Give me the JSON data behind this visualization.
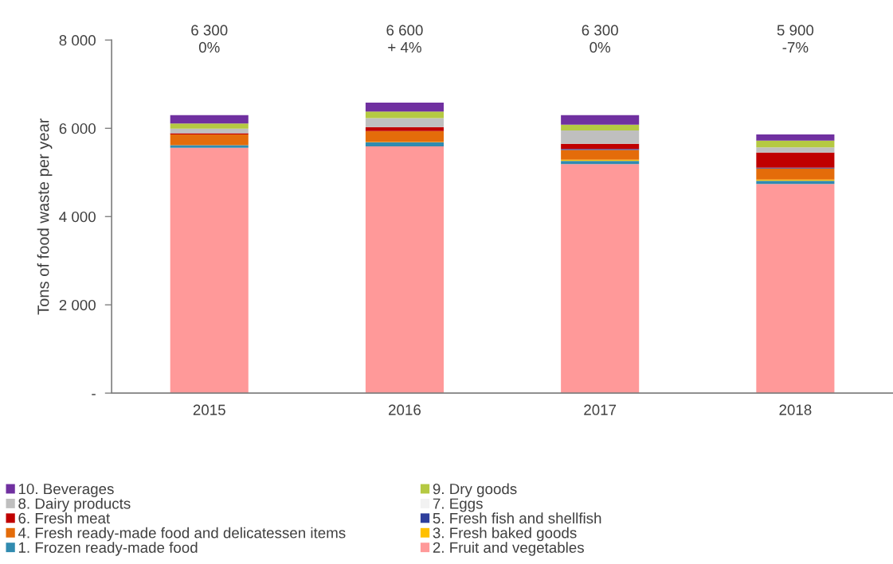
{
  "chart_data": {
    "type": "bar",
    "stacked": true,
    "ylabel": "Tons of food waste per year",
    "categories": [
      "2015",
      "2016",
      "2017",
      "2018"
    ],
    "series": [
      {
        "name": "2. Fruit and vegetables",
        "color": "#ff9999",
        "values": [
          5560,
          5590,
          5190,
          4740
        ]
      },
      {
        "name": "1. Frozen ready-made food",
        "color": "#318bb0",
        "values": [
          60,
          90,
          70,
          70
        ]
      },
      {
        "name": "3. Fresh baked goods",
        "color": "#ffc000",
        "values": [
          0,
          10,
          30,
          30
        ]
      },
      {
        "name": "4. Fresh ready-made food and delicatessen items",
        "color": "#e46c0a",
        "values": [
          240,
          250,
          220,
          250
        ]
      },
      {
        "name": "5. Fresh fish and shellfish",
        "color": "#2e3f9c",
        "values": [
          0,
          0,
          20,
          20
        ]
      },
      {
        "name": "6. Fresh meat",
        "color": "#c00000",
        "values": [
          30,
          90,
          120,
          340
        ]
      },
      {
        "name": "7. Eggs",
        "color": "#f2f2f2",
        "values": [
          0,
          0,
          0,
          0
        ]
      },
      {
        "name": "8. Dairy products",
        "color": "#bfbfbf",
        "values": [
          100,
          200,
          300,
          120
        ]
      },
      {
        "name": "9. Dry goods",
        "color": "#b5c942",
        "values": [
          120,
          150,
          130,
          150
        ]
      },
      {
        "name": "10. Beverages",
        "color": "#7030a0",
        "values": [
          190,
          200,
          220,
          140
        ]
      }
    ],
    "annotations": [
      "6 300\n0%",
      "6 600\n+ 4%",
      "6 300\n0%",
      "5 900\n-7%"
    ],
    "ylim": [
      0,
      8000
    ],
    "yticks": [
      {
        "value": 0,
        "label": "-"
      },
      {
        "value": 2000,
        "label": "2 000"
      },
      {
        "value": 4000,
        "label": "4 000"
      },
      {
        "value": 6000,
        "label": "6 000"
      },
      {
        "value": 8000,
        "label": "8 000"
      }
    ],
    "grid": false,
    "legend": "bottom"
  }
}
